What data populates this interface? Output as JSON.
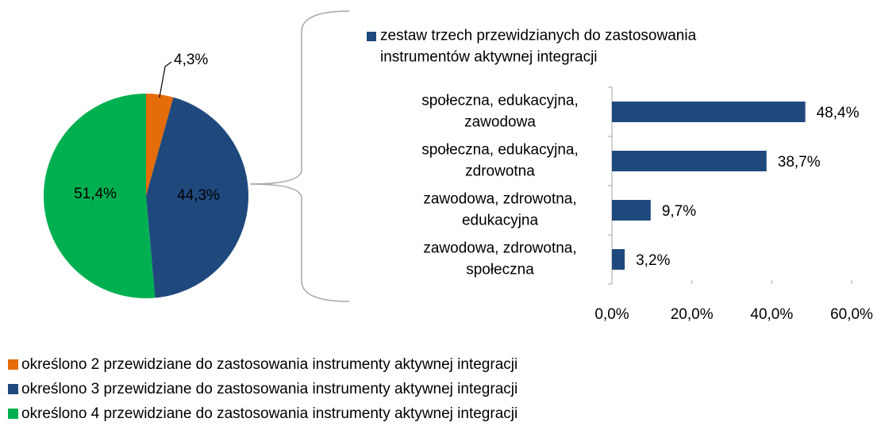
{
  "chart_data": [
    {
      "type": "pie",
      "categories": [
        "określono 2 przewidziane do zastosowania instrumenty aktywnej integracji",
        "określono 3 przewidziane do zastosowania instrumenty aktywnej integracji",
        "określono 4 przewidziane do zastosowania instrumenty aktywnej integracji"
      ],
      "values": [
        4.3,
        44.3,
        51.4
      ],
      "value_labels": [
        "4,3%",
        "44,3%",
        "51,4%"
      ],
      "colors": [
        "#e46c0a",
        "#1f497d",
        "#00b050"
      ]
    },
    {
      "type": "hbar",
      "categories": [
        "społeczna, edukacyjna, zawodowa",
        "społeczna, edukacyjna, zdrowotna",
        "zawodowa, zdrowotna, edukacyjna",
        "zawodowa, zdrowotna, społeczna"
      ],
      "series": [
        {
          "name": "zestaw trzech przewidzianych do zastosowania instrumentów aktywnej integracji",
          "color": "#1f497d",
          "values": [
            48.4,
            38.7,
            9.7,
            3.2
          ],
          "value_labels": [
            "48,4%",
            "38,7%",
            "9,7%",
            "3,2%"
          ]
        }
      ],
      "xlim": [
        0,
        60
      ],
      "xticks": [
        {
          "value": 0,
          "label": "0,0%"
        },
        {
          "value": 20,
          "label": "20,0%"
        },
        {
          "value": 40,
          "label": "40,0%"
        },
        {
          "value": 60,
          "label": "60,0%"
        }
      ]
    }
  ]
}
